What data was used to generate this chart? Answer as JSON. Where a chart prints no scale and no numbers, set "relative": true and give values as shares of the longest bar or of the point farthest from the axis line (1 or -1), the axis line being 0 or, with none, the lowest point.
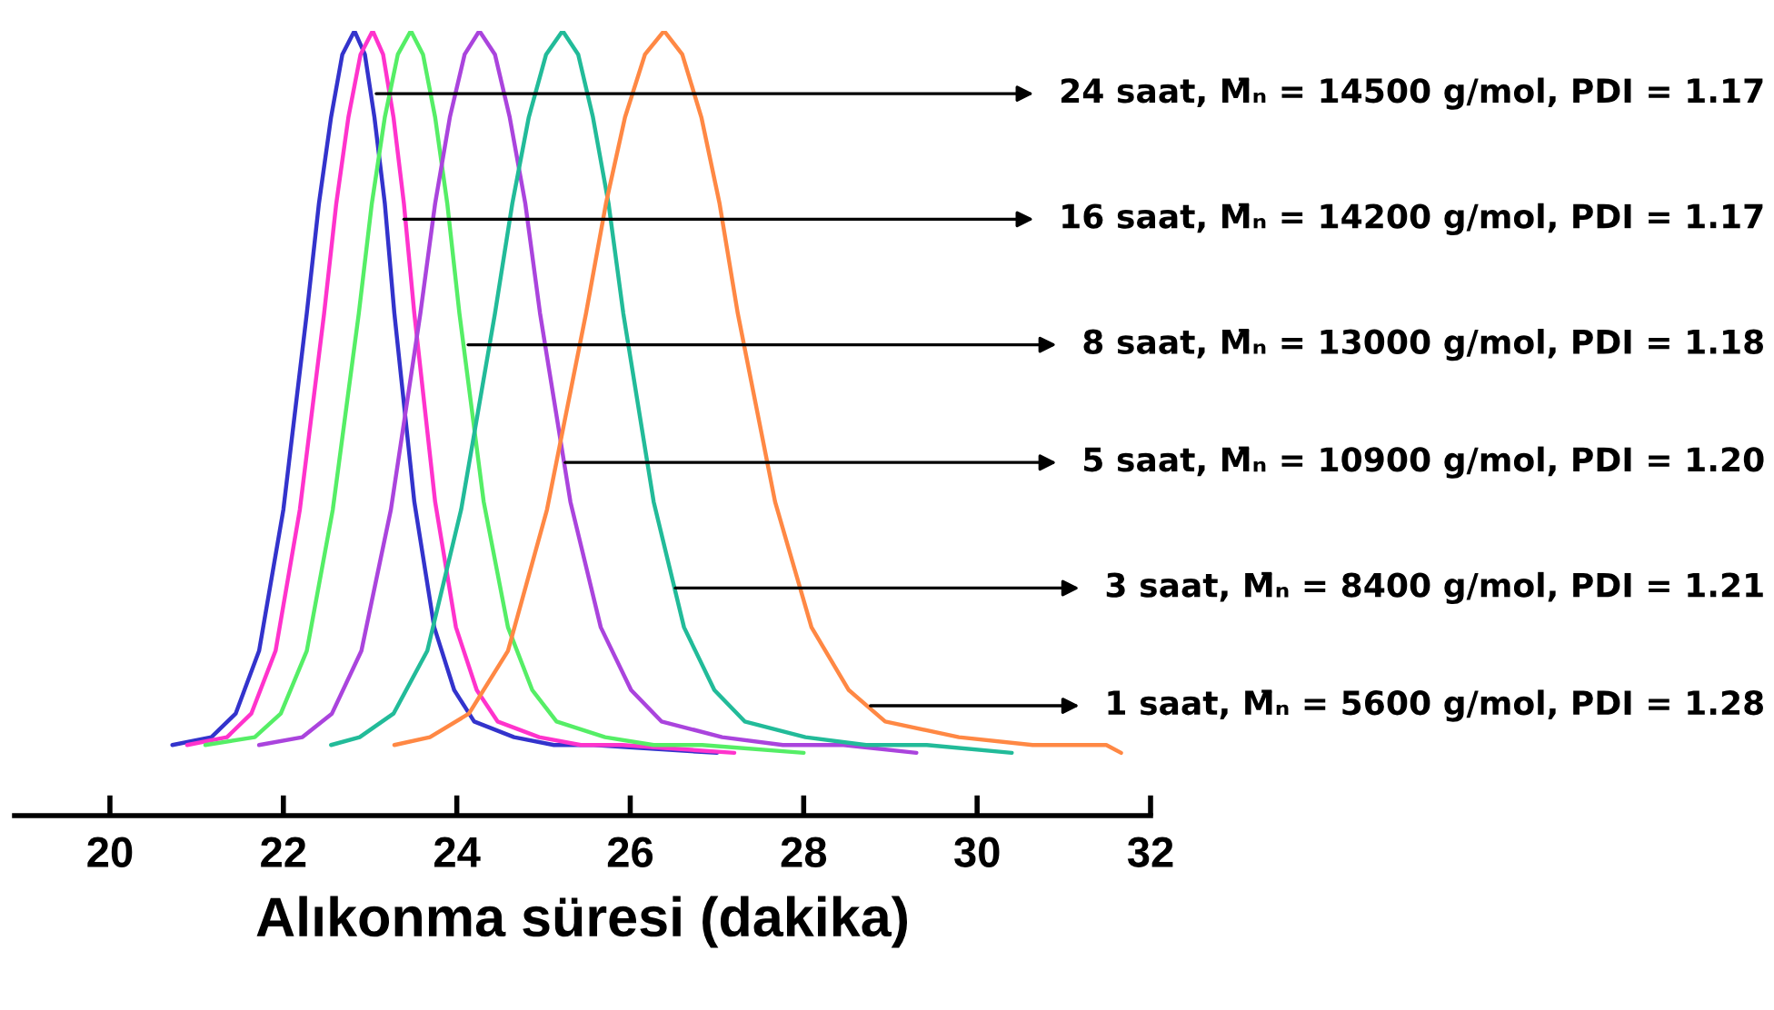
{
  "chart_data": {
    "type": "line",
    "relative": true,
    "xlabel": "Alıkonma süresi (dakika)",
    "xlim": [
      18.9,
      32
    ],
    "xticks": [
      20,
      22,
      24,
      26,
      28,
      30,
      32
    ],
    "grid": false,
    "marker": "none",
    "line_style": "solid",
    "series": [
      {
        "color": "#3333cc",
        "x": [
          20.72,
          21.17,
          21.45,
          21.72,
          22.0,
          22.27,
          22.41,
          22.55,
          22.68,
          22.82,
          22.94,
          23.05,
          23.17,
          23.28,
          23.51,
          23.74,
          23.97,
          24.2,
          24.66,
          25.12,
          25.58,
          27.0
        ],
        "values": [
          0.09,
          0.1,
          0.13,
          0.21,
          0.39,
          0.64,
          0.78,
          0.89,
          0.97,
          1,
          0.97,
          0.89,
          0.78,
          0.64,
          0.4,
          0.24,
          0.16,
          0.12,
          0.1,
          0.09,
          0.09,
          0.08
        ]
      },
      {
        "color": "#ff33cc",
        "x": [
          20.89,
          21.35,
          21.63,
          21.91,
          22.19,
          22.47,
          22.61,
          22.75,
          22.89,
          23.03,
          23.15,
          23.27,
          23.39,
          23.51,
          23.75,
          23.99,
          24.23,
          24.47,
          24.95,
          25.43,
          25.91,
          27.2
        ],
        "values": [
          0.09,
          0.1,
          0.13,
          0.21,
          0.39,
          0.64,
          0.78,
          0.89,
          0.97,
          1,
          0.97,
          0.89,
          0.78,
          0.64,
          0.4,
          0.24,
          0.16,
          0.12,
          0.1,
          0.09,
          0.09,
          0.08
        ]
      },
      {
        "color": "#55ee66",
        "x": [
          21.1,
          21.67,
          21.97,
          22.27,
          22.57,
          22.87,
          23.02,
          23.17,
          23.32,
          23.47,
          23.61,
          23.75,
          23.89,
          24.03,
          24.31,
          24.59,
          24.87,
          25.15,
          25.71,
          26.27,
          26.83,
          28.0
        ],
        "values": [
          0.09,
          0.1,
          0.13,
          0.21,
          0.39,
          0.64,
          0.78,
          0.89,
          0.97,
          1,
          0.97,
          0.89,
          0.78,
          0.64,
          0.4,
          0.24,
          0.16,
          0.12,
          0.1,
          0.09,
          0.09,
          0.08
        ]
      },
      {
        "color": "#aa44dd",
        "x": [
          21.72,
          22.22,
          22.56,
          22.9,
          23.24,
          23.58,
          23.75,
          23.92,
          24.09,
          24.26,
          24.44,
          24.61,
          24.79,
          24.96,
          25.31,
          25.66,
          26.01,
          26.36,
          27.06,
          27.76,
          28.46,
          29.3
        ],
        "values": [
          0.09,
          0.1,
          0.13,
          0.21,
          0.39,
          0.64,
          0.78,
          0.89,
          0.97,
          1,
          0.97,
          0.89,
          0.78,
          0.64,
          0.4,
          0.24,
          0.16,
          0.12,
          0.1,
          0.09,
          0.09,
          0.08
        ]
      },
      {
        "color": "#22bb99",
        "x": [
          22.55,
          22.88,
          23.27,
          23.66,
          24.05,
          24.44,
          24.64,
          24.83,
          25.03,
          25.22,
          25.4,
          25.57,
          25.75,
          25.92,
          26.27,
          26.62,
          26.97,
          27.32,
          28.02,
          28.72,
          29.42,
          30.4
        ],
        "values": [
          0.09,
          0.1,
          0.13,
          0.21,
          0.39,
          0.64,
          0.78,
          0.89,
          0.97,
          1,
          0.97,
          0.89,
          0.78,
          0.64,
          0.4,
          0.24,
          0.16,
          0.12,
          0.1,
          0.09,
          0.09,
          0.08
        ]
      },
      {
        "color": "#ff8844",
        "x": [
          23.28,
          23.69,
          24.14,
          24.59,
          25.04,
          25.49,
          25.72,
          25.94,
          26.17,
          26.39,
          26.6,
          26.82,
          27.03,
          27.24,
          27.67,
          28.09,
          28.52,
          28.94,
          29.79,
          30.64,
          31.49,
          31.66
        ],
        "values": [
          0.09,
          0.1,
          0.13,
          0.21,
          0.39,
          0.64,
          0.78,
          0.89,
          0.97,
          1,
          0.97,
          0.89,
          0.78,
          0.64,
          0.4,
          0.24,
          0.16,
          0.12,
          0.1,
          0.09,
          0.09,
          0.08
        ]
      }
    ],
    "annotations": [
      {
        "text": "24 saat, M̄ₙ = 14500 g/mol, PDI = 1.17",
        "x": 23.07,
        "y": 0.92
      },
      {
        "text": "16 saat, M̄ₙ = 14200 g/mol, PDI = 1.17",
        "x": 23.39,
        "y": 0.76
      },
      {
        "text": "8 saat, M̄ₙ = 13000 g/mol, PDI = 1.18",
        "x": 24.13,
        "y": 0.6
      },
      {
        "text": "5 saat, M̄ₙ = 10900 g/mol, PDI = 1.20",
        "x": 25.25,
        "y": 0.45
      },
      {
        "text": "3 saat, M̄ₙ = 8400 g/mol, PDI = 1.21",
        "x": 26.52,
        "y": 0.29
      },
      {
        "text": "1 saat, M̄ₙ = 5600 g/mol, PDI = 1.28",
        "x": 28.77,
        "y": 0.14
      }
    ]
  }
}
